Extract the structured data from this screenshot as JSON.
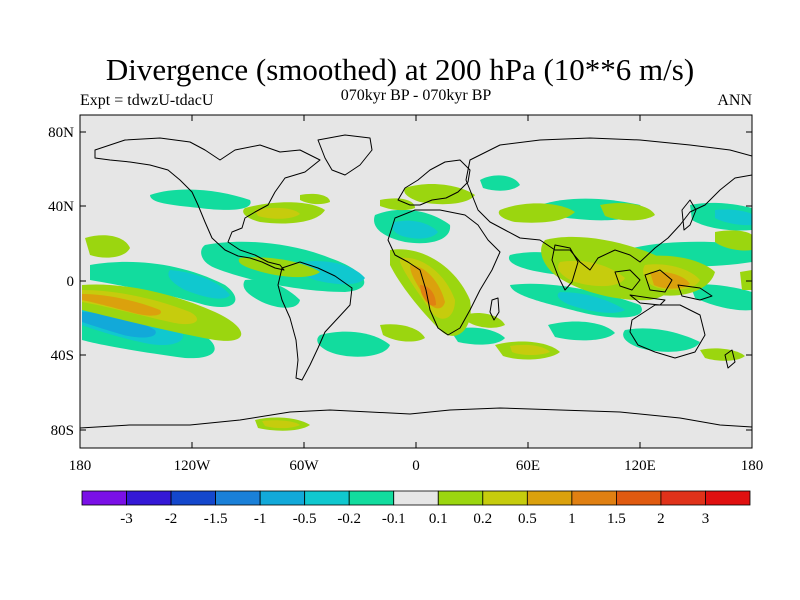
{
  "title": "Divergence (smoothed) at 200 hPa (10**6 m/s)",
  "subtitle": "070kyr BP - 070kyr BP",
  "experiment": "Expt = tdwzU-tdacU",
  "period": "ANN",
  "lat_labels": [
    "80N",
    "40N",
    "0",
    "40S",
    "80S"
  ],
  "lon_labels": [
    "180",
    "120W",
    "60W",
    "0",
    "60E",
    "120E",
    "180"
  ],
  "colorbar": {
    "colors": [
      "#7a10e6",
      "#3418d6",
      "#1447cc",
      "#1a80d8",
      "#12a9d9",
      "#10c8cf",
      "#12dc9e",
      "#e6e6e6",
      "#9bd60f",
      "#c6cc0d",
      "#dba10d",
      "#e08012",
      "#e05a10",
      "#e0321a",
      "#e01010"
    ],
    "labels": [
      "-3",
      "-2",
      "-1.5",
      "-1",
      "-0.5",
      "-0.2",
      "-0.1",
      "0.1",
      "0.2",
      "0.5",
      "1",
      "1.5",
      "2",
      "3"
    ]
  },
  "palette": {
    "positive_weak": "#9bd60f",
    "positive_mid": "#c6cc0d",
    "positive_strong": "#dba10d",
    "negative_weak": "#12dc9e",
    "negative_mid": "#10c8cf",
    "negative_strong": "#12a9d9",
    "background": "#e6e6e6"
  }
}
